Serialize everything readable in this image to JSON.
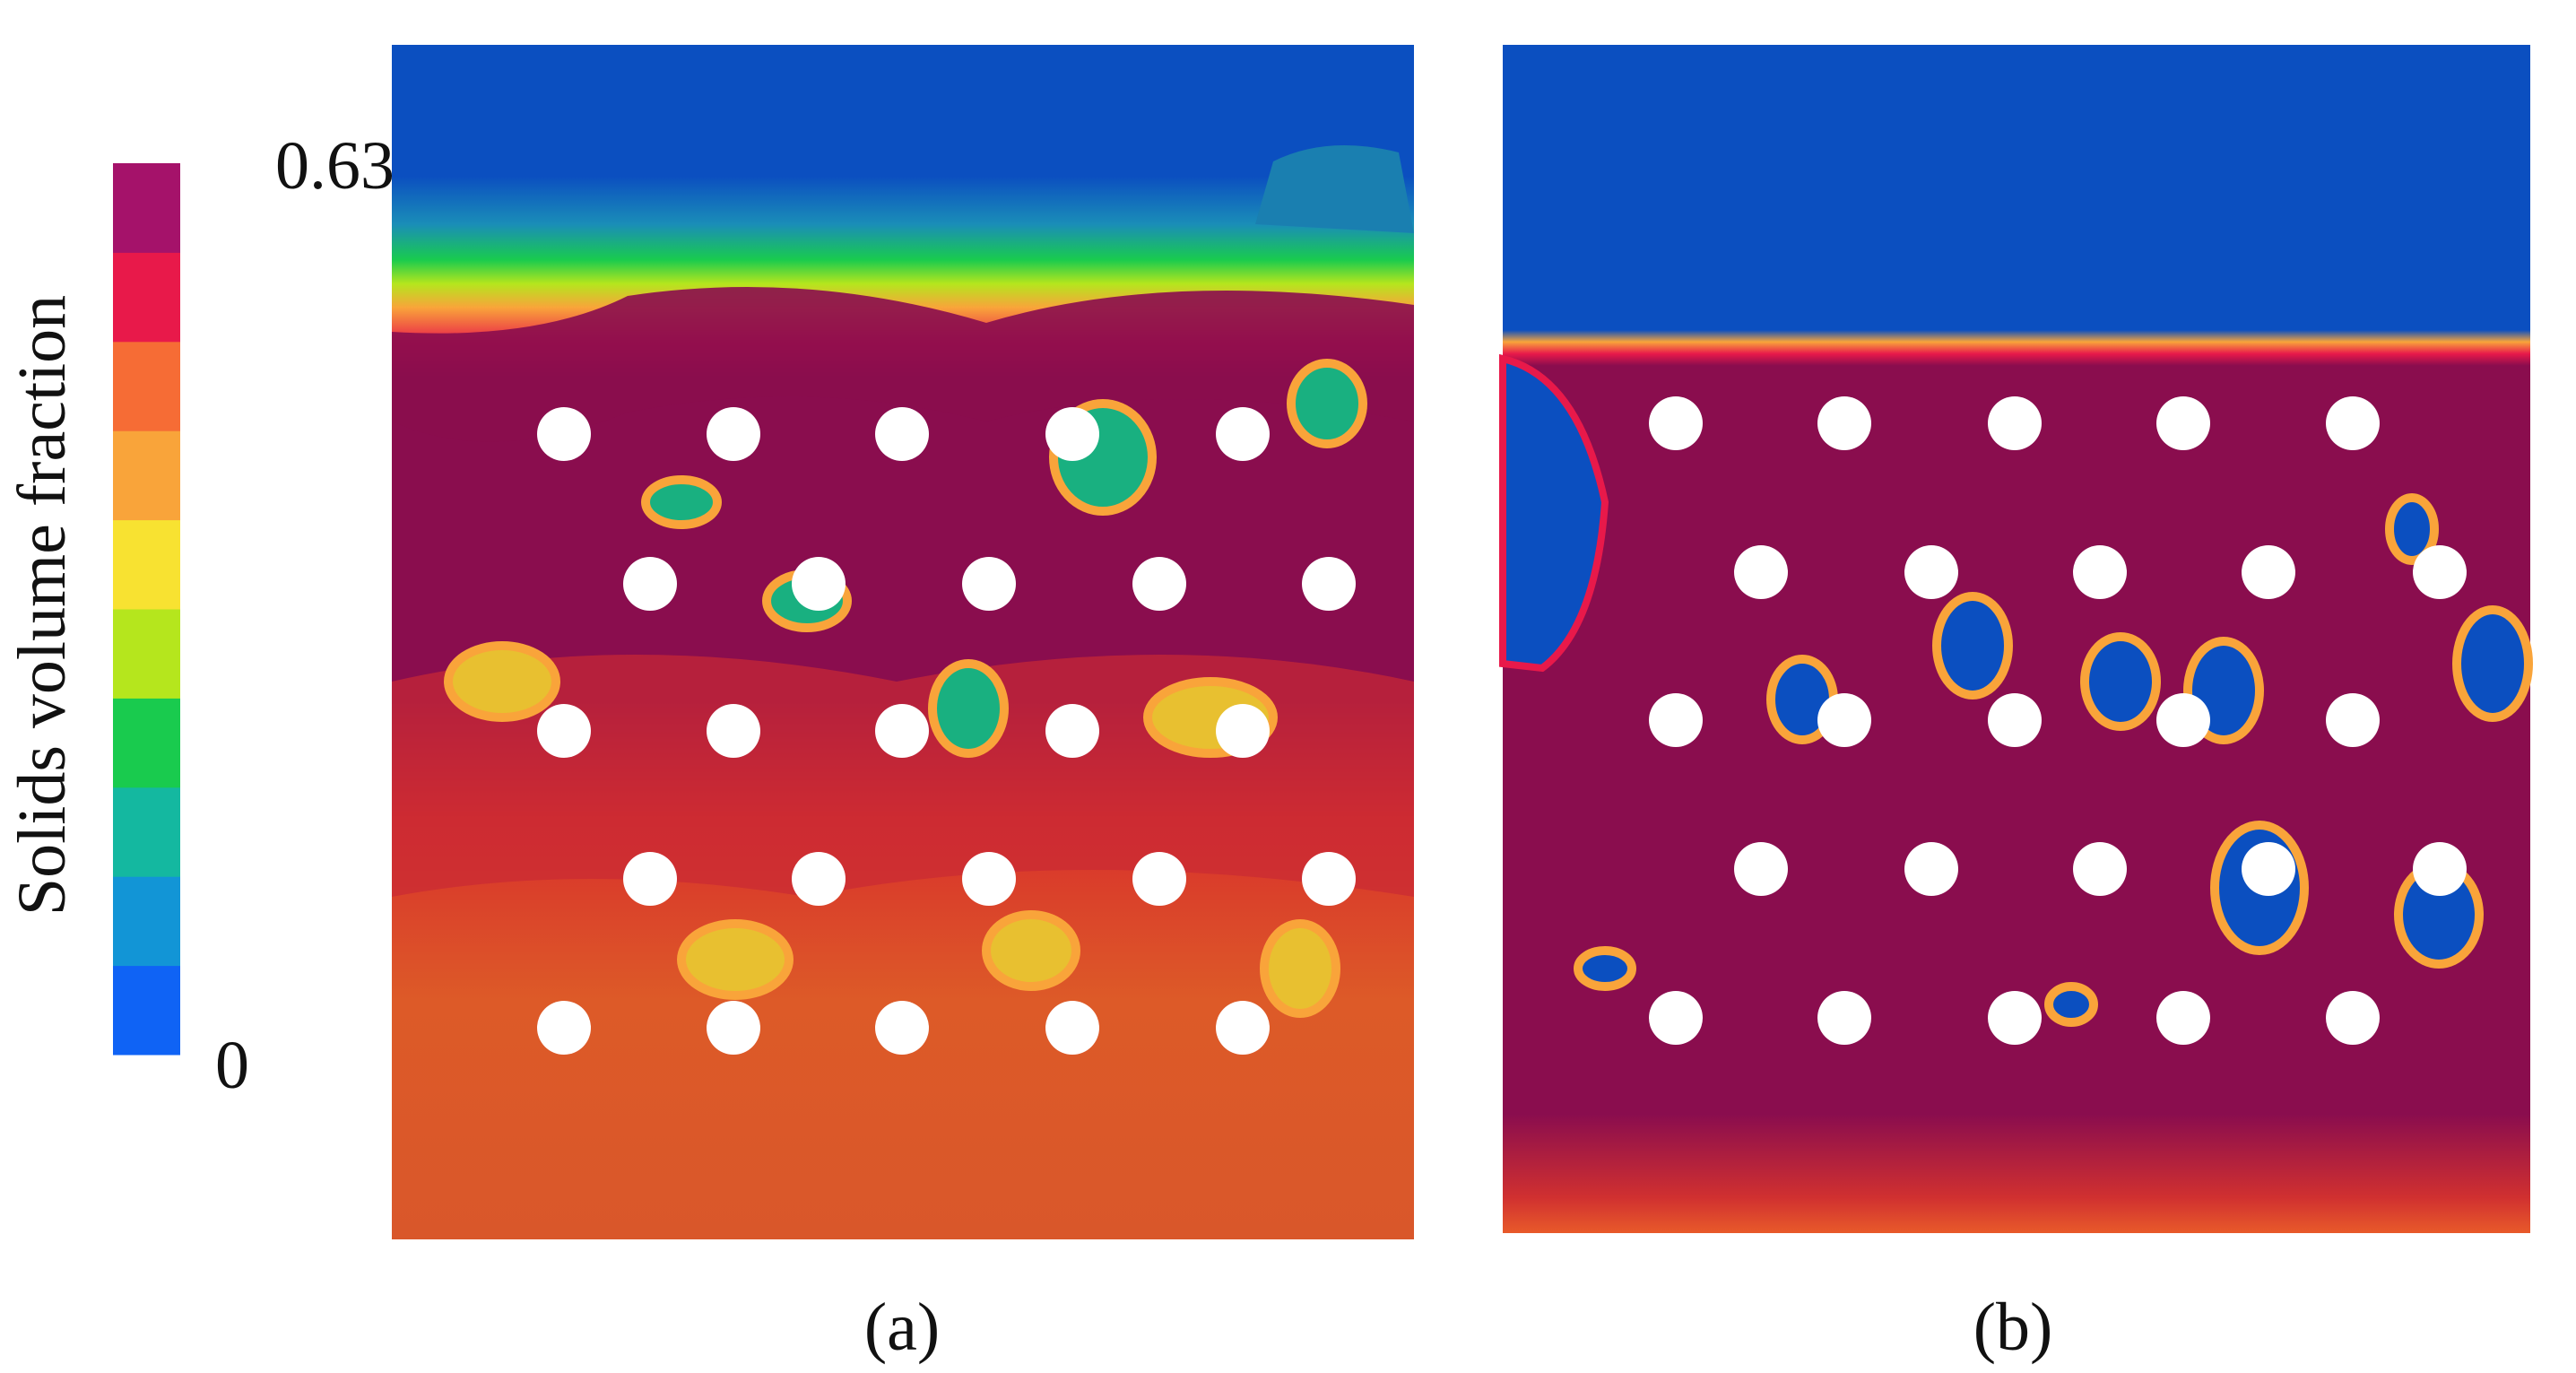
{
  "colorbar": {
    "label": "Solids volume fraction",
    "ticks": [
      0,
      0.63
    ],
    "colors": [
      "#0f63f5",
      "#1295d6",
      "#14b8a0",
      "#19cb4e",
      "#b5e61d",
      "#f8e231",
      "#f9a43a",
      "#f66c35",
      "#e8194a",
      "#a5126a"
    ]
  },
  "panels": [
    {
      "label": "(a)"
    },
    {
      "label": "(b)"
    }
  ]
}
